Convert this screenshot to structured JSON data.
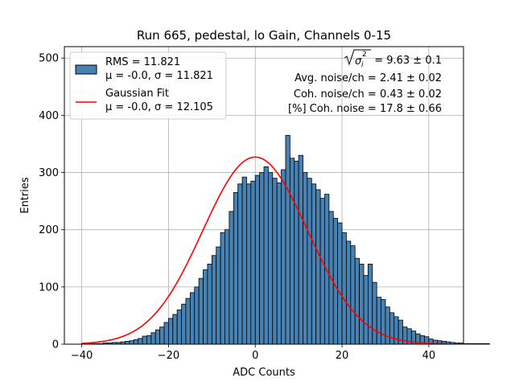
{
  "chart_data": {
    "type": "bar",
    "title": "Run 665, pedestal, lo Gain, Channels 0-15",
    "xlabel": "ADC Counts",
    "ylabel": "Entries",
    "xlim": [
      -44,
      48
    ],
    "ylim": [
      0,
      520
    ],
    "x_ticks": [
      -40,
      -20,
      0,
      20,
      40
    ],
    "y_ticks": [
      0,
      100,
      200,
      300,
      400,
      500
    ],
    "grid": true,
    "legend_position": "top-left",
    "bin_width": 1,
    "bin_start": -40,
    "bar_color": "#4682b4",
    "fit_color": "#ff0000",
    "histogram": {
      "label": "RMS = 11.821",
      "sublabel": "μ = -0.0, σ = 11.821",
      "values": [
        1,
        1,
        1,
        1,
        1,
        2,
        2,
        3,
        3,
        4,
        5,
        6,
        8,
        10,
        14,
        15,
        20,
        25,
        30,
        38,
        45,
        52,
        60,
        70,
        80,
        90,
        100,
        115,
        130,
        140,
        155,
        170,
        195,
        200,
        232,
        265,
        280,
        292,
        280,
        285,
        295,
        300,
        310,
        300,
        290,
        282,
        305,
        365,
        325,
        320,
        330,
        300,
        290,
        280,
        270,
        255,
        262,
        232,
        220,
        212,
        195,
        180,
        172,
        150,
        140,
        120,
        140,
        108,
        82,
        78,
        65,
        55,
        48,
        42,
        30,
        27,
        23,
        18,
        15,
        13,
        9,
        7,
        6,
        5,
        4,
        3,
        2,
        2,
        1,
        1,
        1,
        1,
        1,
        1
      ]
    },
    "fit": {
      "label": "Gaussian Fit",
      "sublabel": "μ = -0.0, σ = 12.105",
      "mu": 0.0,
      "sigma": 12.105,
      "amplitude": 327,
      "x_range": [
        -40,
        44
      ]
    },
    "annotations": [
      {
        "pre": "",
        "sqrt_part": "σ",
        "sub": "i",
        "sup": "2",
        "post": " = 9.63 ± 0.1"
      },
      {
        "text": "Avg. noise/ch = 2.41 ± 0.02"
      },
      {
        "text": "Coh. noise/ch = 0.43 ± 0.02"
      },
      {
        "text": "[%] Coh. noise = 17.8 ± 0.66"
      }
    ]
  }
}
